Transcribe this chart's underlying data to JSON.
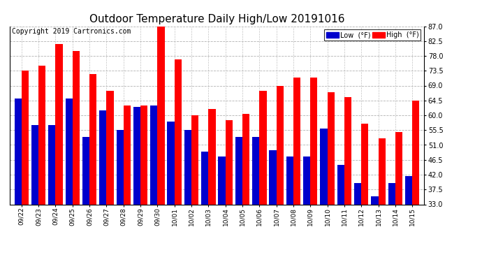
{
  "title": "Outdoor Temperature Daily High/Low 20191016",
  "copyright": "Copyright 2019 Cartronics.com",
  "legend_low": "Low  (°F)",
  "legend_high": "High  (°F)",
  "categories": [
    "09/22",
    "09/23",
    "09/24",
    "09/25",
    "09/26",
    "09/27",
    "09/28",
    "09/29",
    "09/30",
    "10/01",
    "10/02",
    "10/03",
    "10/04",
    "10/05",
    "10/06",
    "10/07",
    "10/08",
    "10/09",
    "10/10",
    "10/11",
    "10/12",
    "10/13",
    "10/14",
    "10/15"
  ],
  "high_values": [
    73.5,
    75.0,
    81.5,
    79.5,
    72.5,
    67.5,
    63.0,
    63.0,
    87.0,
    77.0,
    60.0,
    62.0,
    58.5,
    60.5,
    67.5,
    69.0,
    71.5,
    71.5,
    67.0,
    65.5,
    57.5,
    53.0,
    55.0,
    64.5
  ],
  "low_values": [
    65.0,
    57.0,
    57.0,
    65.0,
    53.5,
    61.5,
    55.5,
    62.5,
    63.0,
    58.0,
    55.5,
    49.0,
    47.5,
    53.5,
    53.5,
    49.5,
    47.5,
    47.5,
    56.0,
    45.0,
    39.5,
    35.5,
    39.5,
    41.5
  ],
  "high_color": "#ff0000",
  "low_color": "#0000cc",
  "bg_color": "#ffffff",
  "plot_bg_color": "#ffffff",
  "grid_color": "#aaaaaa",
  "ylim_min": 33.0,
  "ylim_max": 87.0,
  "yticks": [
    33.0,
    37.5,
    42.0,
    46.5,
    51.0,
    55.5,
    60.0,
    64.5,
    69.0,
    73.5,
    78.0,
    82.5,
    87.0
  ],
  "title_fontsize": 11,
  "copyright_fontsize": 7,
  "bar_width": 0.42,
  "legend_low_bg": "#0000cc",
  "legend_high_bg": "#ff0000"
}
